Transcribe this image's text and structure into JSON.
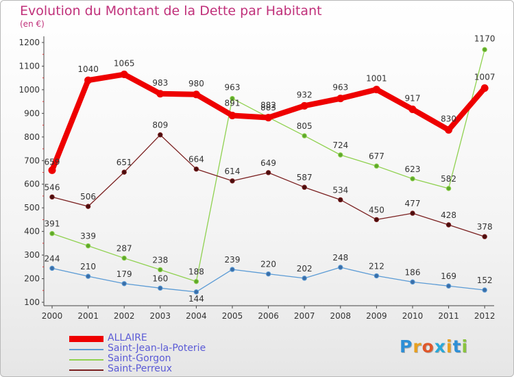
{
  "title": "Evolution du Montant de la Dette par Habitant",
  "subtitle": "(en €)",
  "logo_text": "Proxiti",
  "chart_data": {
    "type": "line",
    "categories": [
      "2000",
      "2001",
      "2002",
      "2003",
      "2004",
      "2005",
      "2006",
      "2007",
      "2008",
      "2009",
      "2010",
      "2011",
      "2012"
    ],
    "ylim": [
      100,
      1200
    ],
    "yticks": [
      100,
      200,
      300,
      400,
      500,
      600,
      700,
      800,
      900,
      1000,
      1100,
      1200
    ],
    "grid": false,
    "legend_position": "bottom-left",
    "series": [
      {
        "name": "ALLAIRE",
        "color": "#ee0000",
        "values": [
          659,
          1040,
          1065,
          983,
          980,
          891,
          882,
          932,
          963,
          1001,
          917,
          830,
          1007
        ]
      },
      {
        "name": "Saint-Jean-la-Poterie",
        "color": "#5b9bd5",
        "values": [
          244,
          210,
          179,
          160,
          144,
          239,
          220,
          202,
          248,
          212,
          186,
          169,
          152
        ]
      },
      {
        "name": "Saint-Gorgon",
        "color": "#8fd14f",
        "values": [
          391,
          339,
          287,
          238,
          188,
          963,
          883,
          805,
          724,
          677,
          623,
          582,
          1170
        ]
      },
      {
        "name": "Saint-Perreux",
        "color": "#7a1f1f",
        "values": [
          546,
          506,
          651,
          809,
          664,
          614,
          649,
          587,
          534,
          450,
          477,
          428,
          378
        ]
      }
    ]
  }
}
